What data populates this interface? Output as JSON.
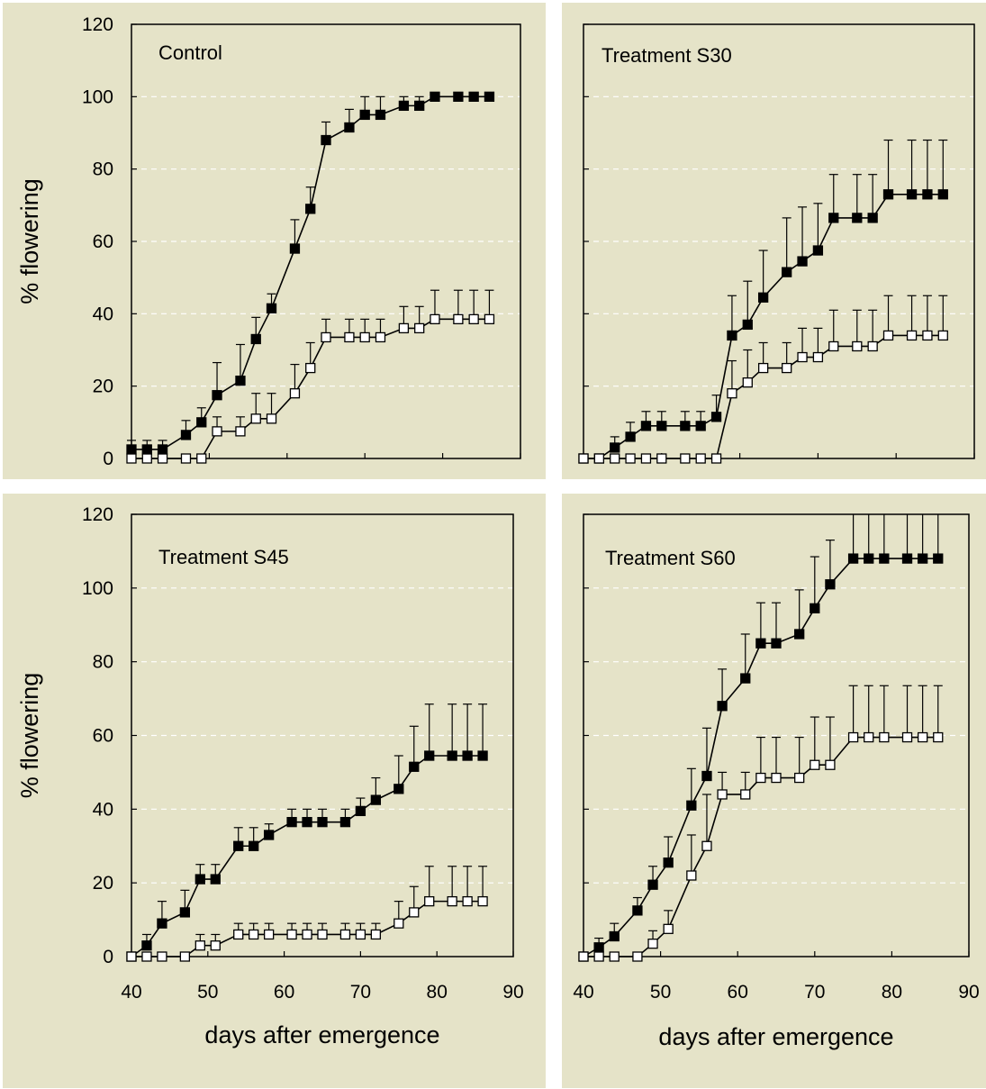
{
  "chart_data": [
    {
      "type": "line",
      "title": "Control",
      "xlabel": "",
      "ylabel": "% flowering",
      "xlim": [
        40,
        90
      ],
      "ylim": [
        0,
        120
      ],
      "xticks": [],
      "yticks": [
        "0",
        "20",
        "40",
        "60",
        "80",
        "100",
        "120"
      ],
      "grid": "horizontal dashed",
      "series": [
        {
          "marker": "filled-square",
          "x": [
            40,
            42,
            44,
            47,
            49,
            51,
            54,
            56,
            58,
            61,
            63,
            65,
            68,
            70,
            72,
            75,
            77,
            79,
            82,
            84,
            86
          ],
          "y": [
            2.5,
            2.5,
            2.5,
            6.5,
            10,
            17.5,
            21.5,
            33,
            41.5,
            58,
            69,
            88,
            91.5,
            95,
            95,
            97.5,
            97.5,
            100,
            100,
            100,
            100
          ],
          "error": [
            2.5,
            2.5,
            2.5,
            4,
            4,
            9,
            10,
            6,
            4,
            8,
            6,
            5,
            5,
            5,
            5,
            2.5,
            2.5,
            0,
            0,
            0,
            0
          ]
        },
        {
          "marker": "open-square",
          "x": [
            40,
            42,
            44,
            47,
            49,
            51,
            54,
            56,
            58,
            61,
            63,
            65,
            68,
            70,
            72,
            75,
            77,
            79,
            82,
            84,
            86
          ],
          "y": [
            0,
            0,
            0,
            0,
            0,
            7.5,
            7.5,
            11,
            11,
            18,
            25,
            33.5,
            33.5,
            33.5,
            33.5,
            36,
            36,
            38.5,
            38.5,
            38.5,
            38.5
          ],
          "error": [
            0,
            0,
            0,
            0,
            0,
            4,
            4,
            7,
            7,
            8,
            7,
            5,
            5,
            5,
            5,
            6,
            6,
            8,
            8,
            8,
            8
          ]
        }
      ]
    },
    {
      "type": "line",
      "title": "Treatment S30",
      "xlabel": "",
      "ylabel": "",
      "xlim": [
        40,
        90
      ],
      "ylim": [
        0,
        120
      ],
      "xticks": [],
      "yticks": [],
      "grid": "horizontal dashed",
      "series": [
        {
          "marker": "filled-square",
          "x": [
            40,
            42,
            44,
            46,
            48,
            50,
            53,
            55,
            57,
            59,
            61,
            63,
            66,
            68,
            70,
            72,
            75,
            77,
            79,
            82,
            84,
            86
          ],
          "y": [
            0,
            0,
            3,
            6,
            9,
            9,
            9,
            9,
            11.5,
            34,
            37,
            44.5,
            51.5,
            54.5,
            57.5,
            66.5,
            66.5,
            66.5,
            73,
            73,
            73,
            73
          ],
          "error": [
            0,
            0,
            3,
            4,
            4,
            4,
            4,
            4,
            6,
            11,
            12,
            13,
            15,
            15,
            13,
            12,
            12,
            12,
            15,
            15,
            15,
            15
          ]
        },
        {
          "marker": "open-square",
          "x": [
            40,
            42,
            44,
            46,
            48,
            50,
            53,
            55,
            57,
            59,
            61,
            63,
            66,
            68,
            70,
            72,
            75,
            77,
            79,
            82,
            84,
            86
          ],
          "y": [
            0,
            0,
            0,
            0,
            0,
            0,
            0,
            0,
            0,
            18,
            21,
            25,
            25,
            28,
            28,
            31,
            31,
            31,
            34,
            34,
            34,
            34
          ],
          "error": [
            0,
            0,
            0,
            0,
            0,
            0,
            0,
            0,
            0,
            9,
            9,
            7,
            7,
            8,
            8,
            10,
            10,
            10,
            11,
            11,
            11,
            11
          ]
        }
      ]
    },
    {
      "type": "line",
      "title": "Treatment S45",
      "xlabel": "days after emergence",
      "ylabel": "% flowering",
      "xlim": [
        40,
        90
      ],
      "ylim": [
        0,
        120
      ],
      "xticks": [
        "40",
        "50",
        "60",
        "70",
        "80",
        "90"
      ],
      "yticks": [
        "0",
        "20",
        "40",
        "60",
        "80",
        "100",
        "120"
      ],
      "grid": "horizontal dashed",
      "series": [
        {
          "marker": "filled-square",
          "x": [
            40,
            42,
            44,
            47,
            49,
            51,
            54,
            56,
            58,
            61,
            63,
            65,
            68,
            70,
            72,
            75,
            77,
            79,
            82,
            84,
            86
          ],
          "y": [
            0,
            3,
            9,
            12,
            21,
            21,
            30,
            30,
            33,
            36.5,
            36.5,
            36.5,
            36.5,
            39.5,
            42.5,
            45.5,
            51.5,
            54.5,
            54.5,
            54.5,
            54.5
          ],
          "error": [
            0,
            3,
            6,
            6,
            4,
            4,
            5,
            5,
            3,
            3.5,
            3.5,
            3.5,
            3.5,
            3.5,
            6,
            9,
            11,
            14,
            14,
            14,
            14
          ]
        },
        {
          "marker": "open-square",
          "x": [
            40,
            42,
            44,
            47,
            49,
            51,
            54,
            56,
            58,
            61,
            63,
            65,
            68,
            70,
            72,
            75,
            77,
            79,
            82,
            84,
            86
          ],
          "y": [
            0,
            0,
            0,
            0,
            3,
            3,
            6,
            6,
            6,
            6,
            6,
            6,
            6,
            6,
            6,
            9,
            12,
            15,
            15,
            15,
            15
          ],
          "error": [
            0,
            0,
            0,
            0,
            3,
            3,
            3,
            3,
            3,
            3,
            3,
            3,
            3,
            3,
            3,
            6,
            7,
            9.5,
            9.5,
            9.5,
            9.5
          ]
        }
      ]
    },
    {
      "type": "line",
      "title": "Treatment S60",
      "xlabel": "days after emergence",
      "ylabel": "",
      "xlim": [
        40,
        90
      ],
      "ylim": [
        0,
        120
      ],
      "xticks": [
        "40",
        "50",
        "60",
        "70",
        "80",
        "90"
      ],
      "yticks": [],
      "grid": "horizontal dashed",
      "series": [
        {
          "marker": "filled-square",
          "x": [
            40,
            42,
            44,
            47,
            49,
            51,
            54,
            56,
            58,
            61,
            63,
            65,
            68,
            70,
            72,
            75,
            77,
            79,
            82,
            84,
            86
          ],
          "y": [
            0,
            2.5,
            5.5,
            12.5,
            19.5,
            25.5,
            41,
            49,
            68,
            75.5,
            85,
            85,
            87.5,
            94.5,
            101,
            108,
            108,
            108,
            108,
            108,
            108
          ],
          "error": [
            0,
            2.5,
            3.5,
            3.5,
            5,
            7,
            10,
            13,
            10,
            12,
            11,
            11,
            12,
            14,
            12,
            14,
            14,
            14,
            14,
            14,
            14
          ]
        },
        {
          "marker": "open-square",
          "x": [
            40,
            42,
            44,
            47,
            49,
            51,
            54,
            56,
            58,
            61,
            63,
            65,
            68,
            70,
            72,
            75,
            77,
            79,
            82,
            84,
            86
          ],
          "y": [
            0,
            0,
            0,
            0,
            3.5,
            7.5,
            22,
            30,
            44,
            44,
            48.5,
            48.5,
            48.5,
            52,
            52,
            59.5,
            59.5,
            59.5,
            59.5,
            59.5,
            59.5
          ],
          "error": [
            0,
            0,
            0,
            0,
            3.5,
            5,
            11,
            14,
            6,
            6,
            11,
            11,
            11,
            13,
            13,
            14,
            14,
            14,
            14,
            14,
            14
          ]
        }
      ]
    }
  ]
}
